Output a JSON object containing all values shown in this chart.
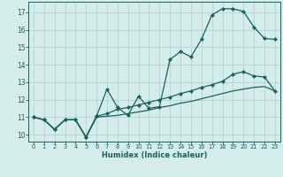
{
  "xlabel": "Humidex (Indice chaleur)",
  "bg_color": "#d4ecea",
  "grid_color": "#aecece",
  "line_color": "#1a6060",
  "xlim": [
    -0.5,
    23.5
  ],
  "ylim": [
    9.6,
    17.6
  ],
  "xticks": [
    0,
    1,
    2,
    3,
    4,
    5,
    6,
    7,
    8,
    9,
    10,
    11,
    12,
    13,
    14,
    15,
    16,
    17,
    18,
    19,
    20,
    21,
    22,
    23
  ],
  "yticks": [
    10,
    11,
    12,
    13,
    14,
    15,
    16,
    17
  ],
  "line1_x": [
    0,
    1,
    2,
    3,
    4,
    5,
    6,
    7,
    8,
    9,
    10,
    11,
    12,
    13,
    14,
    15,
    16,
    17,
    18,
    19,
    20,
    21,
    22,
    23
  ],
  "line1_y": [
    11.0,
    10.85,
    10.3,
    10.85,
    10.85,
    9.85,
    11.05,
    12.6,
    11.55,
    11.1,
    12.2,
    11.5,
    11.6,
    14.3,
    14.75,
    14.45,
    15.45,
    16.85,
    17.2,
    17.2,
    17.05,
    16.15,
    15.5,
    15.45
  ],
  "line2_x": [
    0,
    1,
    2,
    3,
    4,
    5,
    6,
    7,
    8,
    9,
    10,
    11,
    12,
    13,
    14,
    15,
    16,
    17,
    18,
    19,
    20,
    21,
    22,
    23
  ],
  "line2_y": [
    11.0,
    10.85,
    10.3,
    10.85,
    10.85,
    9.85,
    11.05,
    11.2,
    11.45,
    11.55,
    11.7,
    11.85,
    12.0,
    12.15,
    12.35,
    12.5,
    12.7,
    12.85,
    13.05,
    13.45,
    13.6,
    13.35,
    13.3,
    12.5
  ],
  "line3_x": [
    0,
    1,
    2,
    3,
    4,
    5,
    6,
    7,
    8,
    9,
    10,
    11,
    12,
    13,
    14,
    15,
    16,
    17,
    18,
    19,
    20,
    21,
    22,
    23
  ],
  "line3_y": [
    11.0,
    10.85,
    10.3,
    10.85,
    10.85,
    9.85,
    11.0,
    11.05,
    11.1,
    11.2,
    11.3,
    11.4,
    11.55,
    11.65,
    11.8,
    11.9,
    12.05,
    12.2,
    12.35,
    12.5,
    12.6,
    12.7,
    12.75,
    12.5
  ]
}
